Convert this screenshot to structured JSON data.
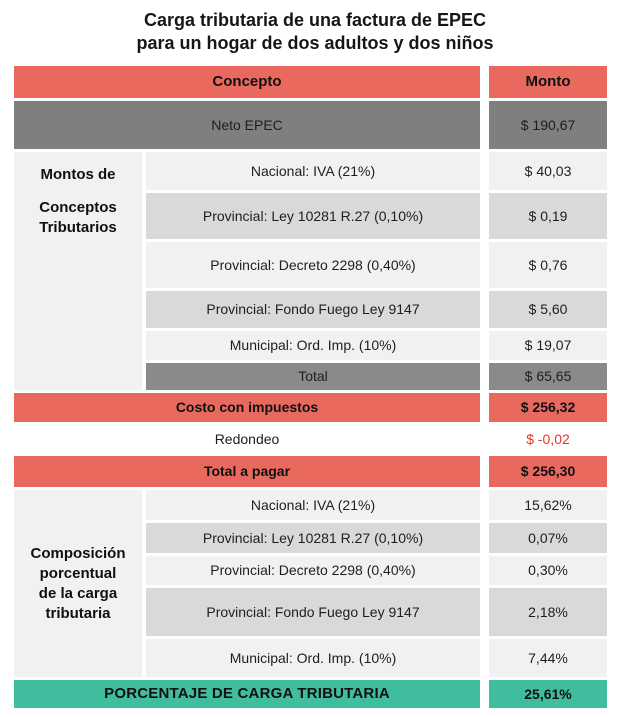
{
  "title": {
    "line1": "Carga tributaria de una factura de EPEC",
    "line2": "para un hogar de dos adultos y dos niños"
  },
  "header": {
    "concepto": "Concepto",
    "monto": "Monto"
  },
  "sections": {
    "montos_label_line1": "Montos de",
    "montos_label_rest": "Conceptos\nTributarios",
    "composicion_label": "Composición\nporcentual\nde la carga\ntributaria"
  },
  "chart_data": {
    "type": "table",
    "title": "Carga tributaria de una factura de EPEC para un hogar de dos adultos y dos niños",
    "columns": [
      "Concepto",
      "Monto"
    ],
    "row_groups": [
      "Montos de Conceptos Tributarios",
      "Composición porcentual de la carga tributaria"
    ],
    "rows": {
      "neto": {
        "concepto": "Neto EPEC",
        "monto": "$ 190,67"
      },
      "montos": [
        {
          "concepto": "Nacional: IVA (21%)",
          "monto": "$ 40,03"
        },
        {
          "concepto": "Provincial: Ley 10281 R.27 (0,10%)",
          "monto": "$ 0,19"
        },
        {
          "concepto": "Provincial: Decreto 2298 (0,40%)",
          "monto": "$ 0,76"
        },
        {
          "concepto": "Provincial: Fondo Fuego Ley 9147",
          "monto": "$ 5,60"
        },
        {
          "concepto": "Municipal: Ord. Imp. (10%)",
          "monto": "$ 19,07"
        }
      ],
      "total": {
        "concepto": "Total",
        "monto": "$ 65,65"
      },
      "costo": {
        "concepto": "Costo con impuestos",
        "monto": "$ 256,32"
      },
      "redondeo": {
        "concepto": "Redondeo",
        "monto": "$ -0,02"
      },
      "total_pagar": {
        "concepto": "Total a pagar",
        "monto": "$ 256,30"
      },
      "composicion": [
        {
          "concepto": "Nacional: IVA (21%)",
          "monto": "15,62%"
        },
        {
          "concepto": "Provincial: Ley 10281 R.27 (0,10%)",
          "monto": "0,07%"
        },
        {
          "concepto": "Provincial: Decreto 2298 (0,40%)",
          "monto": "0,30%"
        },
        {
          "concepto": "Provincial: Fondo Fuego Ley 9147",
          "monto": "2,18%"
        },
        {
          "concepto": "Municipal: Ord. Imp. (10%)",
          "monto": "7,44%"
        }
      ],
      "porcentaje": {
        "concepto": "PORCENTAJE DE CARGA TRIBUTARIA",
        "monto": "25,61%"
      }
    }
  },
  "colors": {
    "header_and_totals": "#e9695f",
    "neto_row": "#7f7f7f",
    "total_row": "#8a8a8a",
    "row_light": "#f1f1f1",
    "row_dark": "#d9d9d9",
    "footer_teal": "#40bd9f",
    "negative_value_red": "#e8342b"
  }
}
